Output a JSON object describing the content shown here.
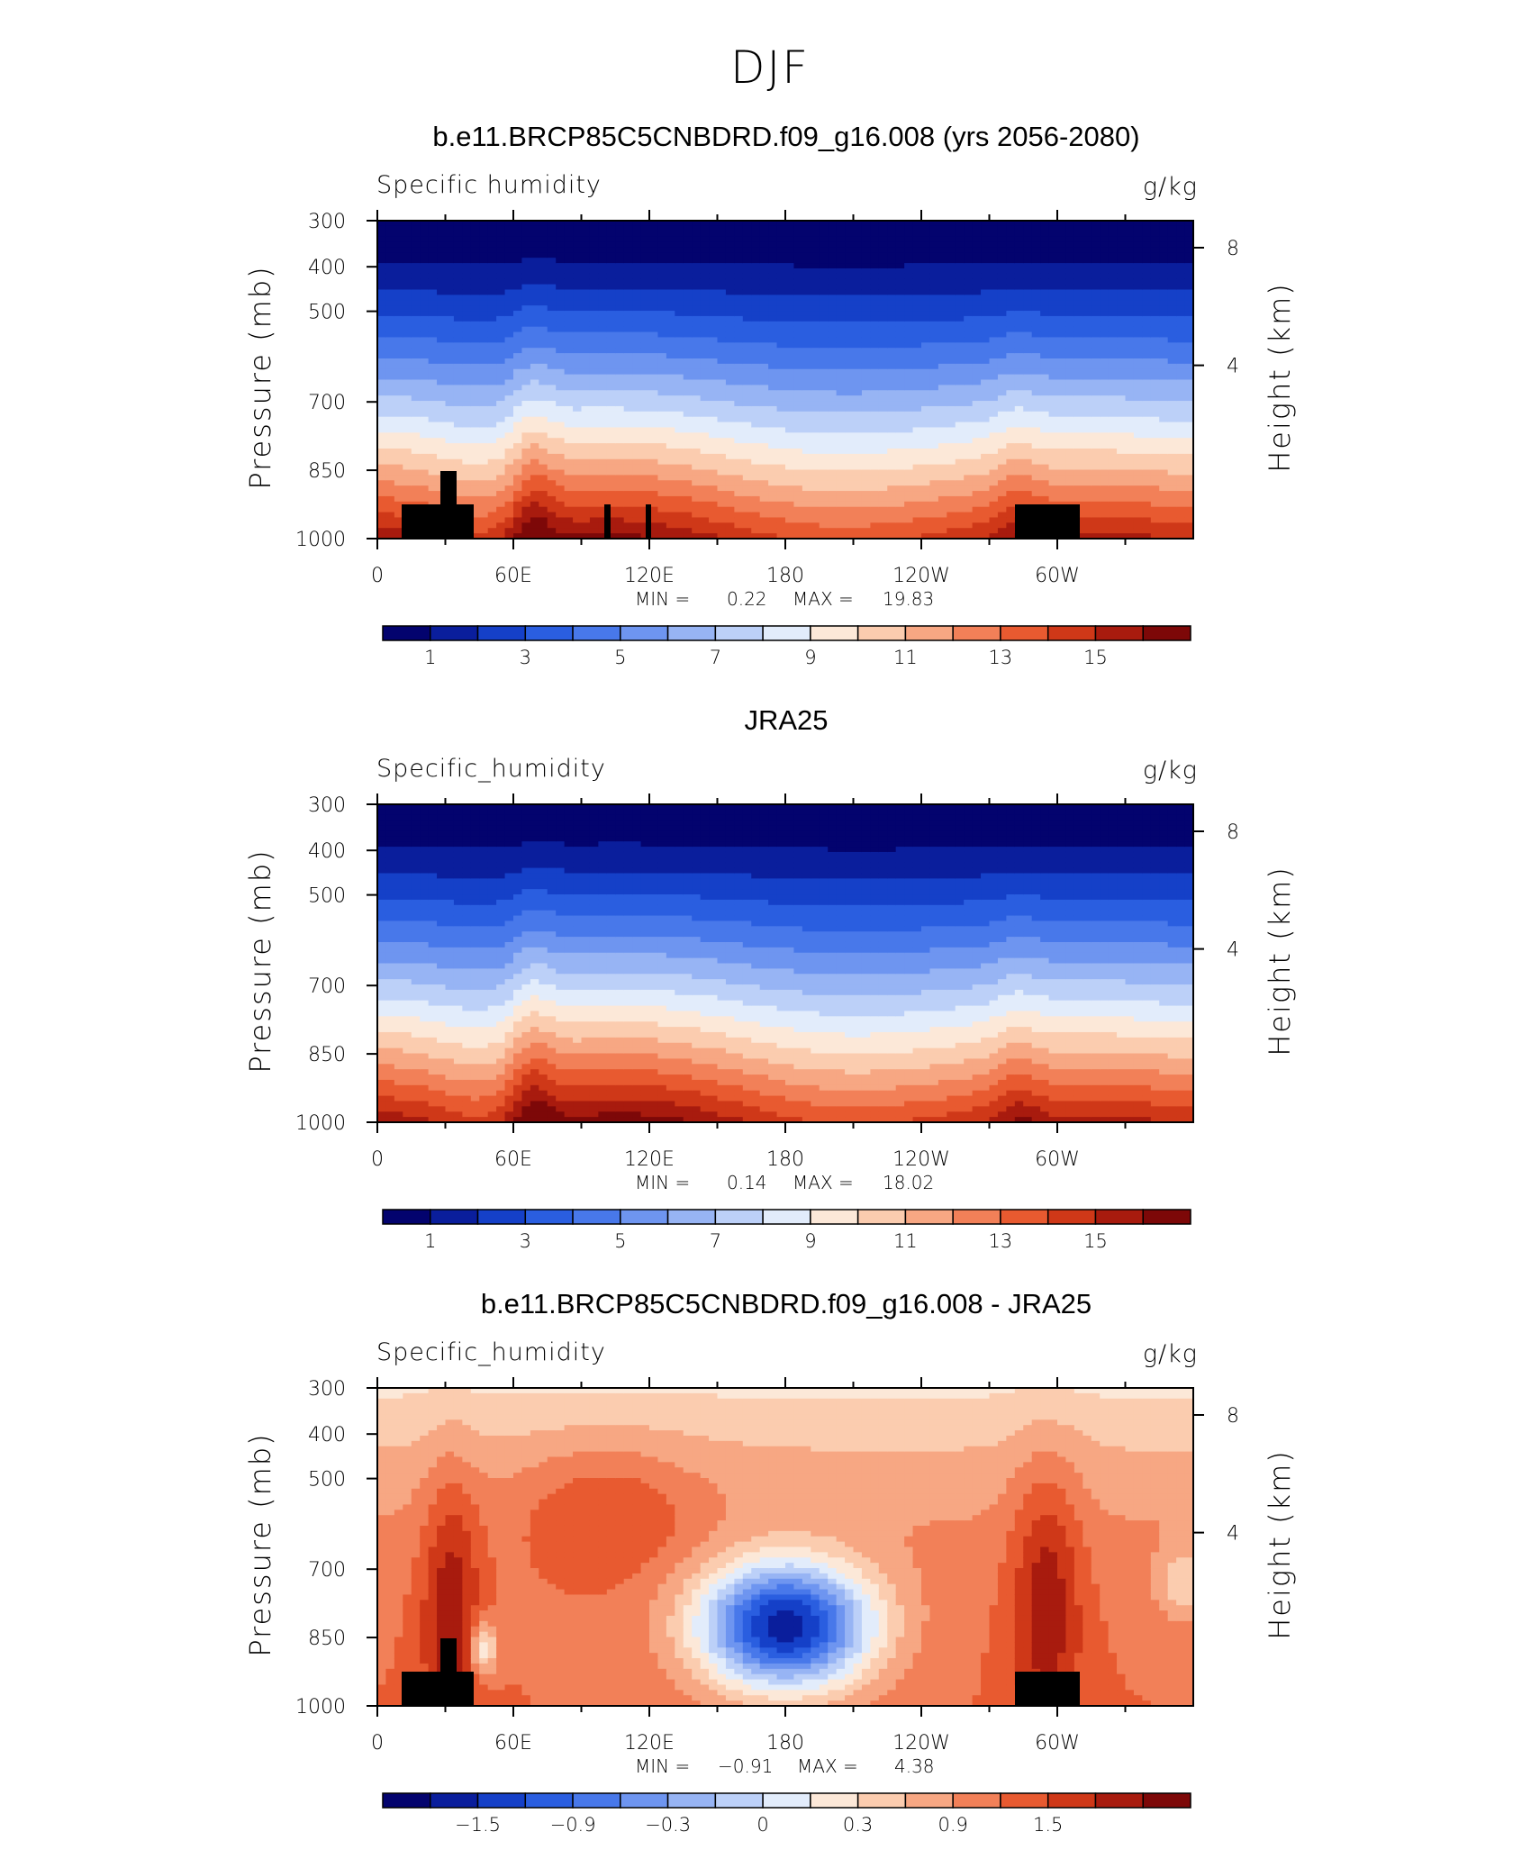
{
  "title": "DJF",
  "colorbar_colors": [
    "#03036e",
    "#0a1e9c",
    "#1540c8",
    "#2a5ee0",
    "#4878ea",
    "#6e95f0",
    "#97b4f4",
    "#bcd0f8",
    "#e2ecfb",
    "#fce8d8",
    "#fbccaf",
    "#f7a783",
    "#f28058",
    "#e85a30",
    "#cf3818",
    "#a81b0e",
    "#7d0808"
  ],
  "chart_data": [
    {
      "type": "heatmap",
      "title": "b.e11.BRCP85C5CNBDRD.f09_g16.008 (yrs 2056-2080)",
      "left_label": "Specific humidity",
      "right_label": "g/kg",
      "ylabel": "Pressure (mb)",
      "ylabel_right": "Height (km)",
      "x_ticks": [
        "0",
        "60E",
        "120E",
        "180",
        "120W",
        "60W"
      ],
      "y_ticks": [
        "300",
        "400",
        "500",
        "700",
        "850",
        "1000"
      ],
      "y_ticks_right": [
        "8",
        "4"
      ],
      "min_label": "MIN =",
      "min": "0.22",
      "max_label": "MAX =",
      "max": "19.83",
      "colorbar_labels": [
        "1",
        "3",
        "5",
        "7",
        "9",
        "11",
        "13",
        "15"
      ],
      "levels": [
        0.5,
        1,
        1.5,
        2,
        3,
        4,
        5,
        6,
        7,
        8,
        9,
        10,
        11,
        12,
        13,
        14,
        15
      ]
    },
    {
      "type": "heatmap",
      "title": "JRA25",
      "left_label": "Specific_humidity",
      "right_label": "g/kg",
      "ylabel": "Pressure (mb)",
      "ylabel_right": "Height (km)",
      "x_ticks": [
        "0",
        "60E",
        "120E",
        "180",
        "120W",
        "60W"
      ],
      "y_ticks": [
        "300",
        "400",
        "500",
        "700",
        "850",
        "1000"
      ],
      "y_ticks_right": [
        "8",
        "4"
      ],
      "min_label": "MIN =",
      "min": "0.14",
      "max_label": "MAX =",
      "max": "18.02",
      "colorbar_labels": [
        "1",
        "3",
        "5",
        "7",
        "9",
        "11",
        "13",
        "15"
      ],
      "levels": [
        0.5,
        1,
        1.5,
        2,
        3,
        4,
        5,
        6,
        7,
        8,
        9,
        10,
        11,
        12,
        13,
        14,
        15
      ]
    },
    {
      "type": "heatmap",
      "title": "b.e11.BRCP85C5CNBDRD.f09_g16.008 - JRA25",
      "left_label": "Specific_humidity",
      "right_label": "g/kg",
      "ylabel": "Pressure (mb)",
      "ylabel_right": "Height (km)",
      "x_ticks": [
        "0",
        "60E",
        "120E",
        "180",
        "120W",
        "60W"
      ],
      "y_ticks": [
        "300",
        "400",
        "500",
        "700",
        "850",
        "1000"
      ],
      "y_ticks_right": [
        "8",
        "4"
      ],
      "min_label": "MIN =",
      "min": "−0.91",
      "max_label": "MAX =",
      "max": "4.38",
      "colorbar_labels": [
        "−1.5",
        "−0.9",
        "−0.3",
        "0",
        "0.3",
        "0.9",
        "1.5"
      ],
      "levels": [
        -1.8,
        -1.5,
        -1.2,
        -0.9,
        -0.6,
        -0.3,
        -0.1,
        0,
        0.1,
        0.3,
        0.6,
        0.9,
        1.2,
        1.5,
        1.8
      ]
    }
  ]
}
